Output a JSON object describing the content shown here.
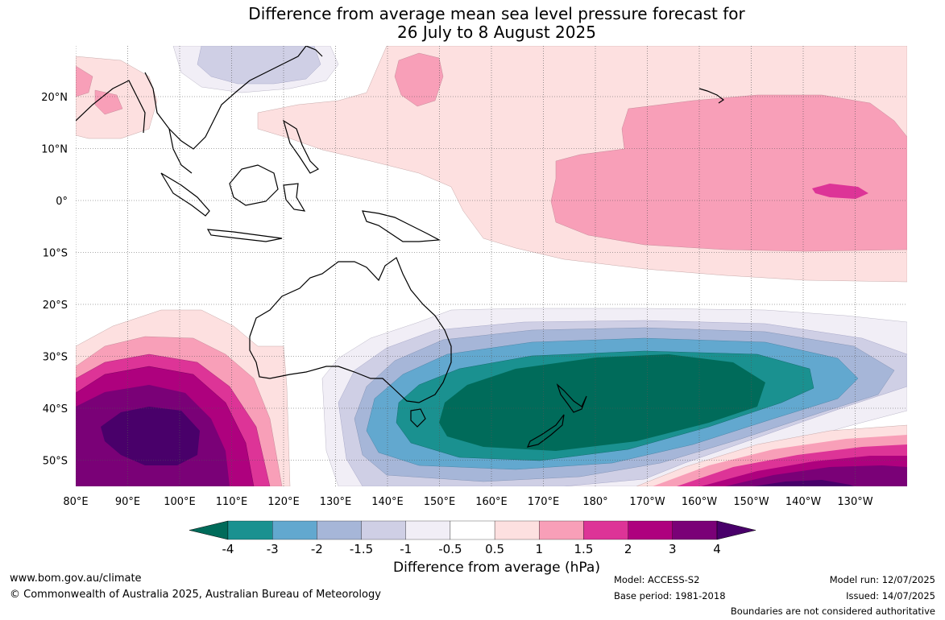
{
  "title": {
    "line1": "Difference from average mean sea level pressure forecast for",
    "line2": "26 July to 8 August 2025"
  },
  "map": {
    "region": "Australia, Pacific and Indian Ocean",
    "lat_ticks": [
      "20°N",
      "10°N",
      "0°",
      "10°S",
      "20°S",
      "30°S",
      "40°S",
      "50°S"
    ],
    "lon_ticks": [
      "80°E",
      "90°E",
      "100°E",
      "110°E",
      "120°E",
      "130°E",
      "140°E",
      "150°E",
      "160°E",
      "170°E",
      "180°",
      "170°W",
      "160°W",
      "150°W",
      "140°W",
      "130°W"
    ],
    "gridlines": true
  },
  "colorbar": {
    "ticks": [
      "-4",
      "-3",
      "-2",
      "-1.5",
      "-1",
      "-0.5",
      "0.5",
      "1",
      "1.5",
      "2",
      "3",
      "4"
    ],
    "colors": [
      "#006b5a",
      "#1a9190",
      "#62a8cf",
      "#a6b6d8",
      "#cfcfe5",
      "#f1eef6",
      "#ffffff",
      "#fde0e0",
      "#f89fb8",
      "#dd3497",
      "#ae017e",
      "#7a0177",
      "#49006a"
    ],
    "label": "Difference from average (hPa)"
  },
  "footer": {
    "url": "www.bom.gov.au/climate",
    "copyright": "© Commonwealth of Australia 2025, Australian Bureau of Meteorology",
    "model": "Model: ACCESS-S2",
    "base_period": "Base period: 1981-2018",
    "model_run": "Model run: 12/07/2025",
    "issued": "Issued: 14/07/2025",
    "disclaimer": "Boundaries are not considered authoritative"
  }
}
